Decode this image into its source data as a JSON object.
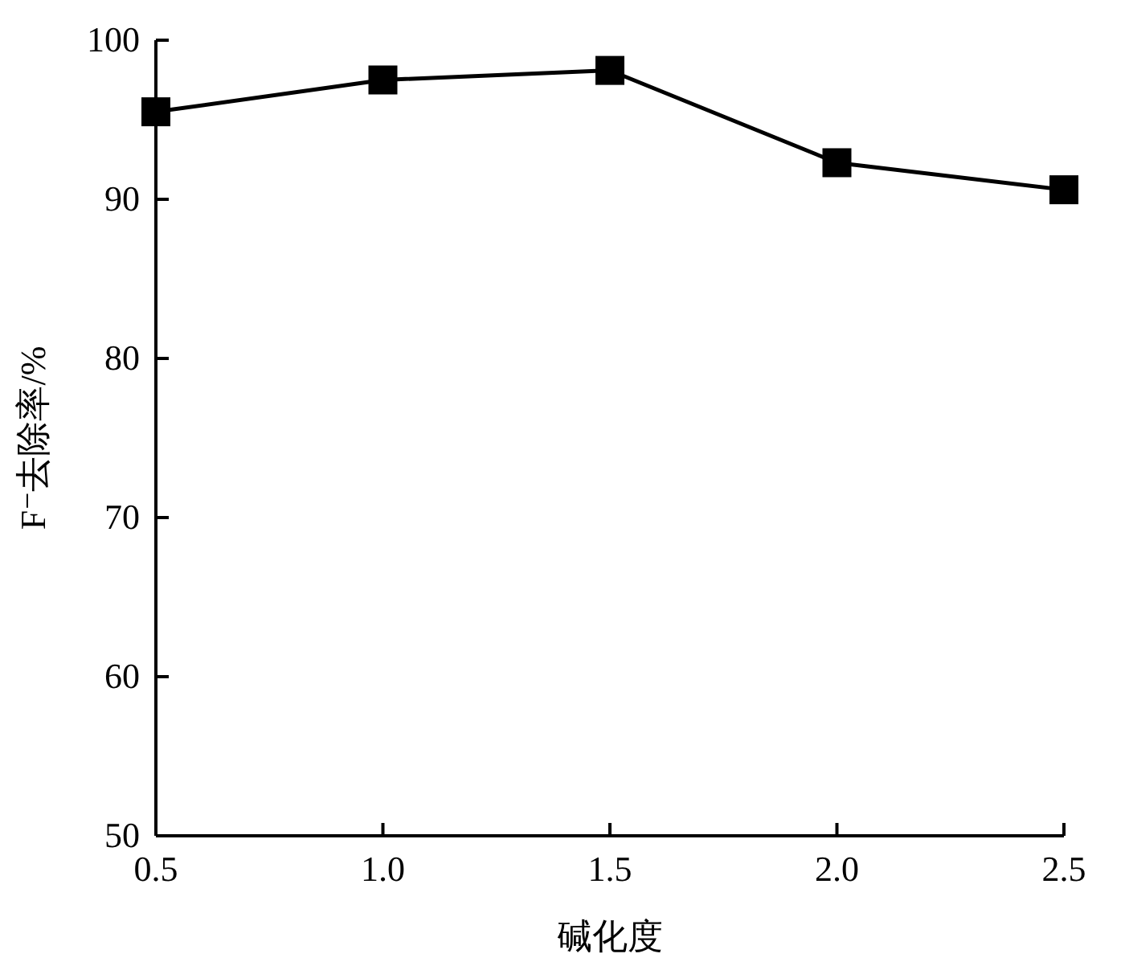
{
  "chart_data": {
    "type": "line",
    "xlabel": "碱化度",
    "ylabel": "F⁻去除率/%",
    "x": [
      0.5,
      1.0,
      1.5,
      2.0,
      2.5
    ],
    "series": [
      {
        "color": "#000000",
        "values": [
          95.5,
          97.5,
          98.1,
          92.3,
          90.6
        ]
      }
    ],
    "xlim": [
      0.5,
      2.5
    ],
    "xticks": [
      {
        "value": 0.5,
        "label": "0.5"
      },
      {
        "value": 1.0,
        "label": "1.0"
      },
      {
        "value": 1.5,
        "label": "1.5"
      },
      {
        "value": 2.0,
        "label": "2.0"
      },
      {
        "value": 2.5,
        "label": "2.5"
      }
    ],
    "ylim": [
      50,
      100
    ],
    "yticks": [
      50,
      60,
      70,
      80,
      90,
      100
    ],
    "marker": "square",
    "line_style": "solid",
    "grid": false
  }
}
